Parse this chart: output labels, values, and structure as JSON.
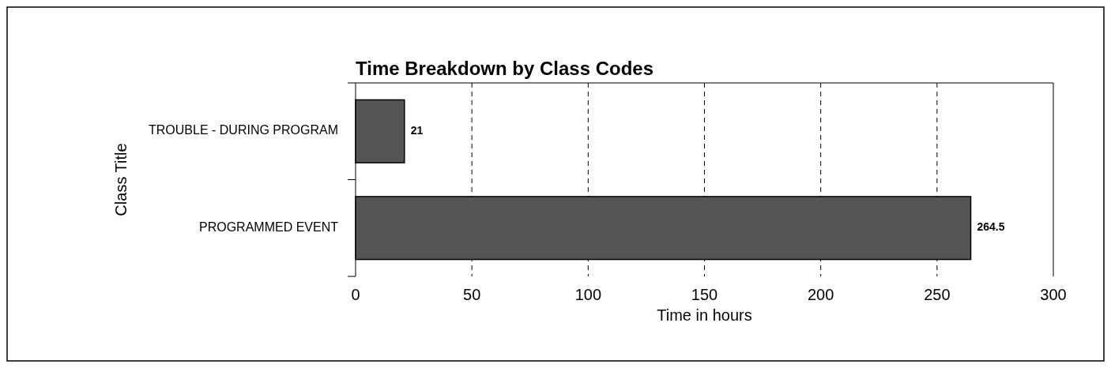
{
  "chart_data": {
    "type": "bar",
    "orientation": "horizontal",
    "title": "Time Breakdown by Class Codes",
    "xlabel": "Time in hours",
    "ylabel": "Class Title",
    "categories": [
      "TROUBLE - DURING PROGRAM",
      "PROGRAMMED EVENT"
    ],
    "values": [
      21,
      264.5
    ],
    "color": "#555555",
    "xlim": [
      0,
      300
    ],
    "xticks": [
      0,
      50,
      100,
      150,
      200,
      250,
      300
    ],
    "grid": "x",
    "data_labels": true
  }
}
